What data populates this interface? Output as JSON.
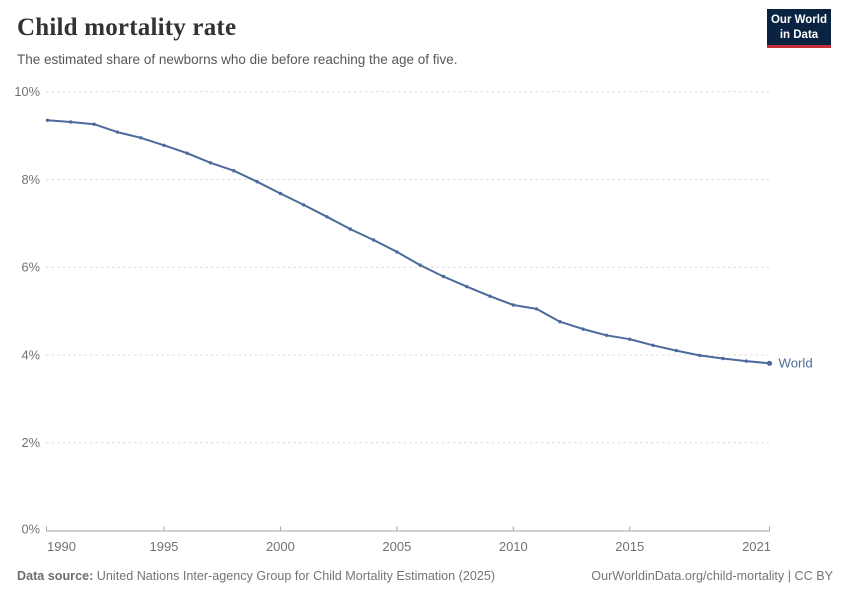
{
  "header": {
    "title": "Child mortality rate",
    "subtitle": "The estimated share of newborns who die before reaching the age of five.",
    "logo": {
      "line1": "Our World",
      "line2": "in Data"
    }
  },
  "footer": {
    "datasource_label": "Data source:",
    "datasource_text": " United Nations Inter-agency Group for Child Mortality Estimation (2025)",
    "link": "OurWorldinData.org/child-mortality | CC BY"
  },
  "colors": {
    "line": "#4c6a9c",
    "gridline": "#dcdcdc",
    "axis": "#a5a5a5",
    "tick_label": "#737373",
    "logo_bg": "#0a2342",
    "logo_stripe": "#c52d37"
  },
  "chart_data": {
    "type": "line",
    "title": "Child mortality rate",
    "subtitle": "The estimated share of newborns who die before reaching the age of five.",
    "x": [
      1990,
      1991,
      1992,
      1993,
      1994,
      1995,
      1996,
      1997,
      1998,
      1999,
      2000,
      2001,
      2002,
      2003,
      2004,
      2005,
      2006,
      2007,
      2008,
      2009,
      2010,
      2011,
      2012,
      2013,
      2014,
      2015,
      2016,
      2017,
      2018,
      2019,
      2020,
      2021
    ],
    "series": [
      {
        "name": "World",
        "color": "#4c6a9c",
        "values": [
          9.35,
          9.31,
          9.26,
          9.08,
          8.95,
          8.78,
          8.6,
          8.38,
          8.2,
          7.95,
          7.68,
          7.42,
          7.15,
          6.87,
          6.62,
          6.35,
          6.05,
          5.79,
          5.56,
          5.34,
          5.14,
          5.05,
          4.76,
          4.59,
          4.45,
          4.36,
          4.22,
          4.1,
          3.99,
          3.92,
          3.86,
          3.81
        ]
      }
    ],
    "xlabel": "",
    "ylabel": "",
    "xlim": [
      1990,
      2021
    ],
    "ylim": [
      0,
      10
    ],
    "yticks": [
      0,
      2,
      4,
      6,
      8,
      10
    ],
    "ytick_suffix": "%",
    "xticks": [
      1990,
      1995,
      2000,
      2005,
      2010,
      2015,
      2021
    ],
    "grid": "horizontal-dashed",
    "legend": "end-of-line-label"
  }
}
